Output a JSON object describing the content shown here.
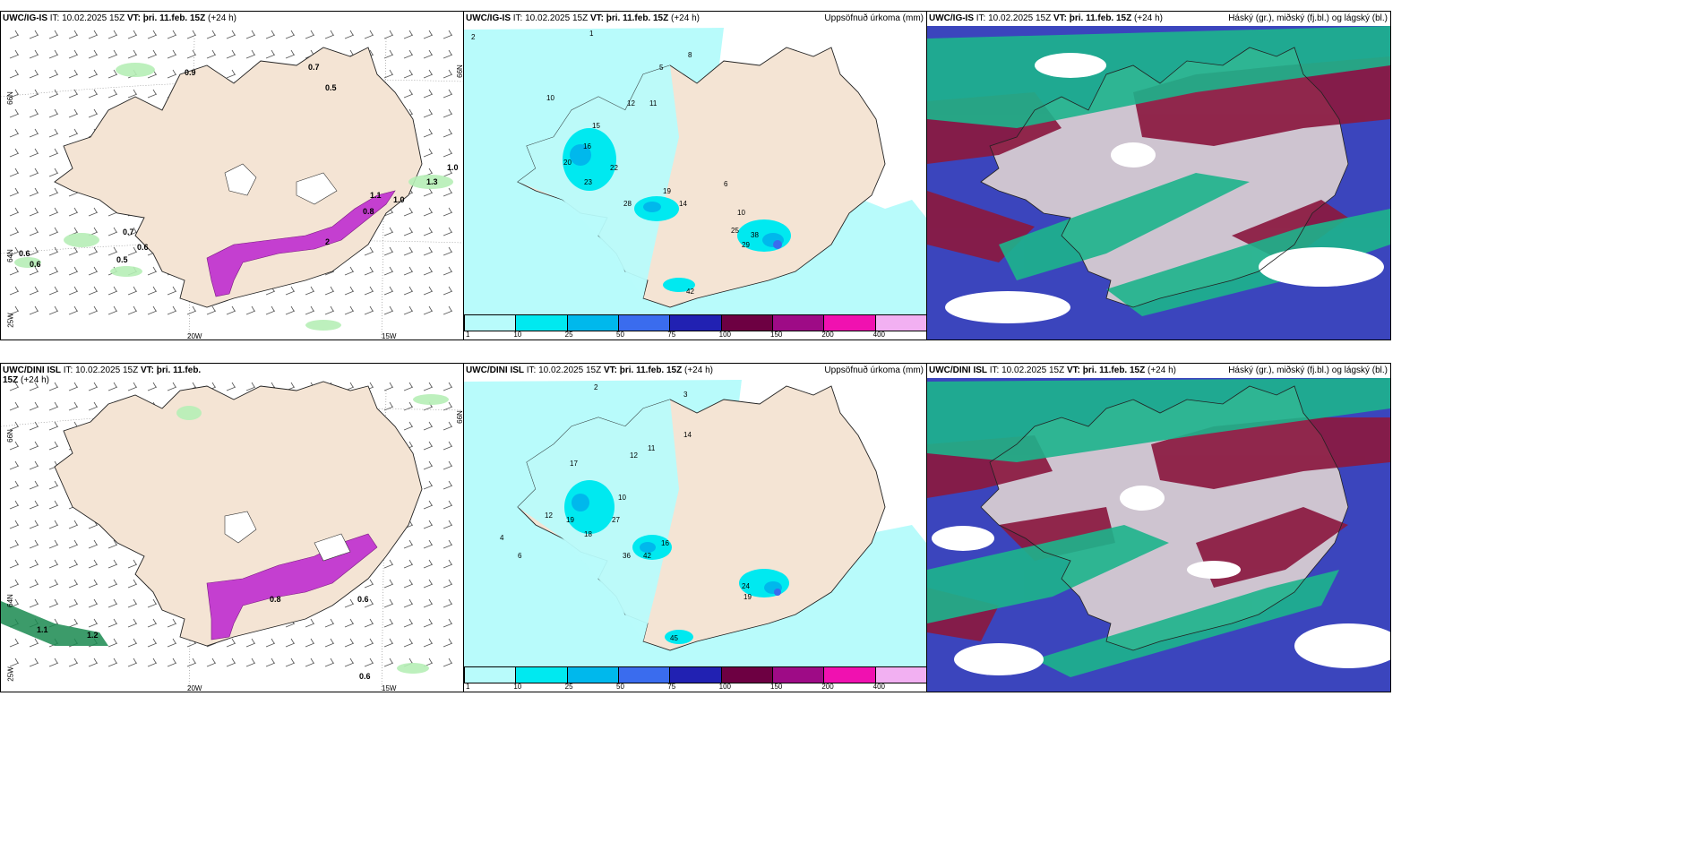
{
  "panels": {
    "p1": {
      "model": "UWC/IG-IS",
      "it_label": "IT:",
      "it_value": "10.02.2025 15Z",
      "vt_label": "VT:",
      "vt_value": "þri. 11.feb. 15Z",
      "lead": "(+24 h)"
    },
    "p2": {
      "model": "UWC/IG-IS",
      "it_label": "IT:",
      "it_value": "10.02.2025 15Z",
      "vt_label": "VT:",
      "vt_value": "þri. 11.feb. 15Z",
      "lead": "(+24 h)",
      "title_right": "Uppsöfnuð úrkoma (mm)"
    },
    "p3": {
      "model": "UWC/IG-IS",
      "it_label": "IT:",
      "it_value": "10.02.2025 15Z",
      "vt_label": "VT:",
      "vt_value": "þri. 11.feb. 15Z",
      "lead": "(+24 h)",
      "title_right": "Háský (gr.), miðský (fj.bl.) og lágský (bl.)"
    },
    "p4": {
      "model": "UWC/DINI ISL",
      "it_label": "IT:",
      "it_value": "10.02.2025 15Z",
      "vt_label": "VT:",
      "vt_value": "þri. 11.feb. 15Z",
      "lead": "(+24 h)"
    },
    "p5": {
      "model": "UWC/DINI ISL",
      "it_label": "IT:",
      "it_value": "10.02.2025 15Z",
      "vt_label": "VT:",
      "vt_value": "þri. 11.feb. 15Z",
      "lead": "(+24 h)",
      "title_right": "Uppsöfnuð úrkoma (mm)"
    },
    "p6": {
      "model": "UWC/DINI ISL",
      "it_label": "IT:",
      "it_value": "10.02.2025 15Z",
      "vt_label": "VT:",
      "vt_value": "þri. 11.feb. 15Z",
      "lead": "(+24 h)",
      "title_right": "Háský (gr.), miðský (fj.bl.) og lágský (bl.)"
    }
  },
  "latlon": {
    "n66": "66N",
    "n64": "64N",
    "w25": "25W",
    "w20": "20W",
    "w15": "15W"
  },
  "colorbar": {
    "ticks": [
      "1",
      "10",
      "25",
      "50",
      "75",
      "100",
      "150",
      "200",
      "400"
    ],
    "colors": [
      "#b8fbfb",
      "#00e9f0",
      "#00b8ec",
      "#3a6cee",
      "#2121b2",
      "#6d0042",
      "#9e0b86",
      "#f011b0",
      "#f2b0f2"
    ]
  },
  "colors": {
    "land": "#f4e4d4",
    "precip_light": "#b8fbfb",
    "precip_mid": "#00e9f0",
    "snow_magenta": "#c43fd0",
    "green_light": "#b6eeb6",
    "cloud_high": "#1db48c",
    "cloud_mid": "#3b45bd",
    "cloud_low": "#8b1940"
  },
  "precip_labels_top": [
    "1",
    "2",
    "5",
    "8",
    "10",
    "12",
    "15",
    "16",
    "20",
    "22",
    "23",
    "28",
    "19",
    "25",
    "29",
    "38",
    "42",
    "10",
    "11",
    "14",
    "6"
  ],
  "precip_labels_bottom": [
    "2",
    "3",
    "4",
    "6",
    "12",
    "17",
    "19",
    "18",
    "27",
    "36",
    "42",
    "16",
    "24",
    "19",
    "45",
    "12",
    "14",
    "11",
    "10"
  ],
  "wind_values_top": [
    "0.9",
    "0.7",
    "0.5",
    "0.7",
    "0.6",
    "0.5",
    "0.6",
    "0.6",
    "1.0",
    "1.3",
    "1.0",
    "1.1",
    "0.8",
    "2"
  ],
  "wind_values_bottom": [
    "1.1",
    "1.2",
    "0.6",
    "0.6",
    "0.8"
  ]
}
